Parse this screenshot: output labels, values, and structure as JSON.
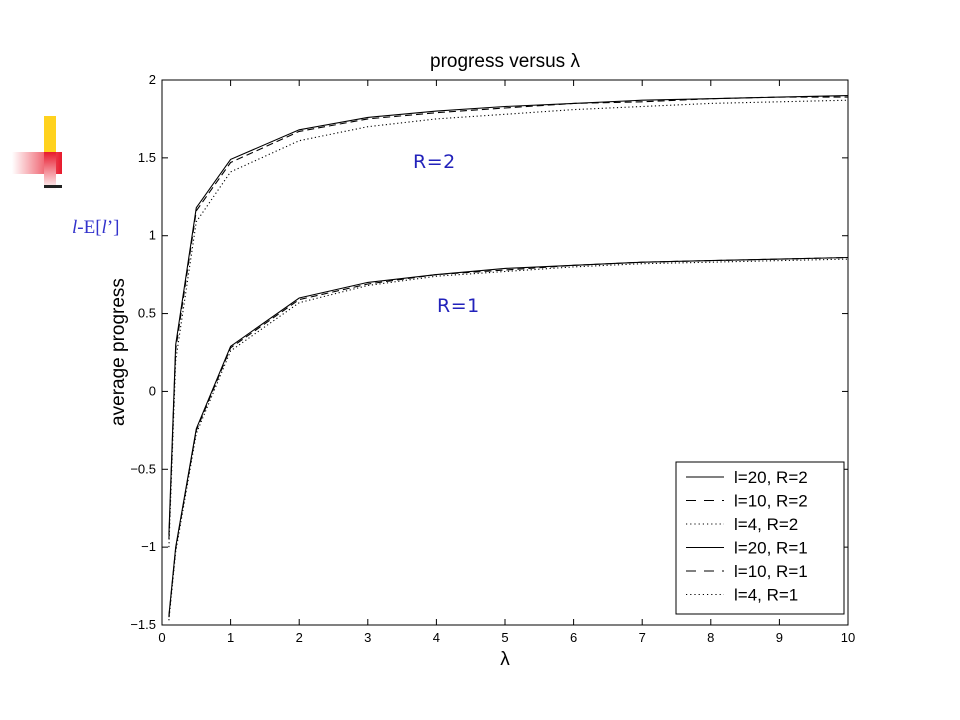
{
  "slide": {
    "side_label_parts": [
      "l",
      "-E[",
      "l",
      "’]"
    ],
    "accent_colors": {
      "yellow": "#ffd21e",
      "red": "#e8192c",
      "text_blue": "#3333cc"
    }
  },
  "chart_data": {
    "type": "line",
    "title": "progress versus λ",
    "xlabel": "λ",
    "ylabel": "average progress",
    "xlim": [
      0,
      10
    ],
    "ylim": [
      -1.5,
      2
    ],
    "xticks": [
      "0",
      "1",
      "2",
      "3",
      "4",
      "5",
      "6",
      "7",
      "8",
      "9",
      "10"
    ],
    "yticks": [
      "−1.5",
      "−1",
      "−0.5",
      "0",
      "0.5",
      "1",
      "1.5",
      "2"
    ],
    "grid": false,
    "legend_position": "bottom-right",
    "annotations": [
      "R=2",
      "R=1"
    ],
    "x": [
      0.1,
      0.2,
      0.5,
      1,
      2,
      3,
      4,
      5,
      6,
      7,
      8,
      9,
      10
    ],
    "series": [
      {
        "name": "l=20, R=2",
        "style": "solid",
        "values": [
          -0.92,
          0.3,
          1.18,
          1.49,
          1.68,
          1.76,
          1.8,
          1.83,
          1.85,
          1.87,
          1.88,
          1.89,
          1.9
        ]
      },
      {
        "name": "l=10, R=2",
        "style": "dashed",
        "values": [
          -0.95,
          0.27,
          1.16,
          1.47,
          1.67,
          1.75,
          1.79,
          1.82,
          1.85,
          1.86,
          1.88,
          1.89,
          1.89
        ]
      },
      {
        "name": "l=4, R=2",
        "style": "dotted",
        "values": [
          -1.0,
          0.2,
          1.09,
          1.41,
          1.61,
          1.7,
          1.75,
          1.78,
          1.81,
          1.83,
          1.85,
          1.86,
          1.87
        ]
      },
      {
        "name": "l=20, R=1",
        "style": "solid",
        "values": [
          -1.44,
          -1.0,
          -0.24,
          0.29,
          0.6,
          0.7,
          0.75,
          0.79,
          0.81,
          0.83,
          0.84,
          0.85,
          0.86
        ]
      },
      {
        "name": "l=10, R=1",
        "style": "dashed",
        "values": [
          -1.45,
          -1.01,
          -0.25,
          0.28,
          0.59,
          0.69,
          0.75,
          0.78,
          0.81,
          0.83,
          0.84,
          0.85,
          0.86
        ]
      },
      {
        "name": "l=4, R=1",
        "style": "dotted",
        "values": [
          -1.47,
          -1.03,
          -0.27,
          0.26,
          0.57,
          0.68,
          0.74,
          0.77,
          0.8,
          0.82,
          0.83,
          0.84,
          0.85
        ]
      }
    ]
  }
}
